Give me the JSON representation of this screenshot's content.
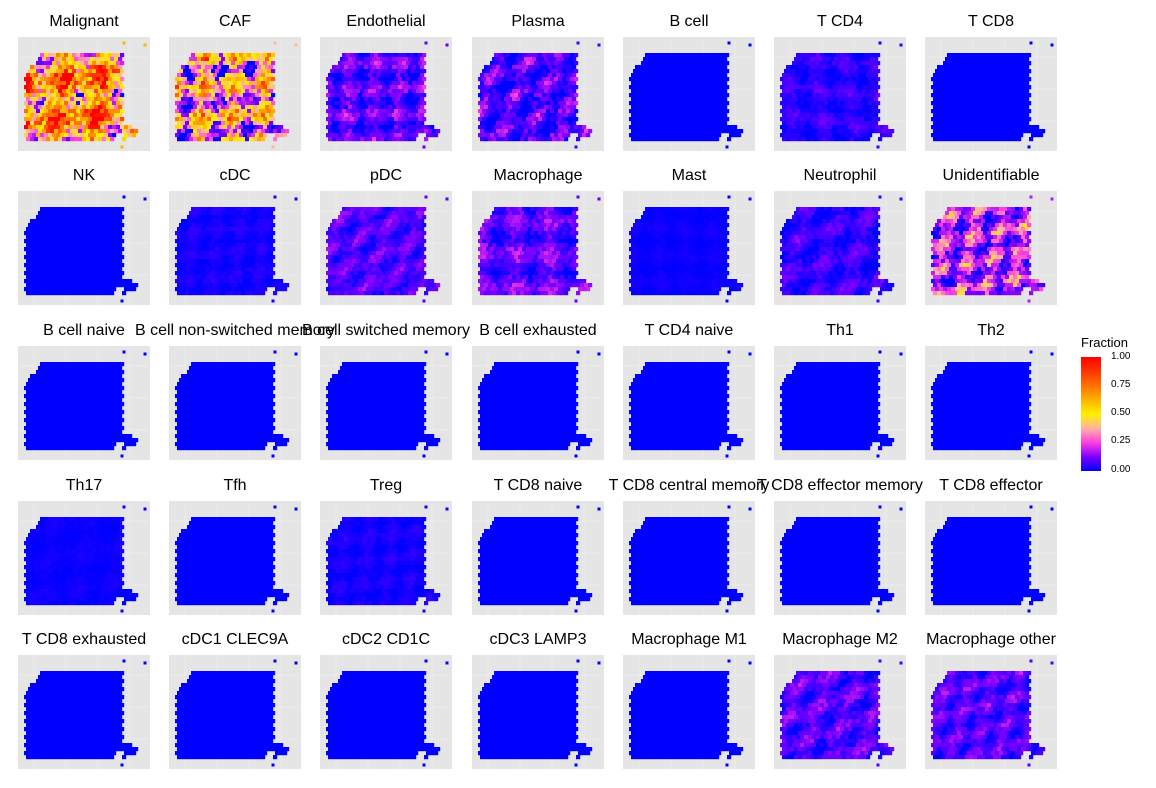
{
  "chart_data": {
    "type": "heatmap",
    "layout": "facet grid of spatial maps, 7 columns x 5 rows",
    "title": "",
    "xlabel": "",
    "ylabel": "",
    "grid": true,
    "background": "#e5e5e5",
    "legend": {
      "title": "Fraction",
      "placement": "right",
      "limits": [
        0,
        1
      ],
      "ticks": [
        1.0,
        0.75,
        0.5,
        0.25,
        0.0
      ],
      "tick_labels": [
        "1.00",
        "0.75",
        "0.50",
        "0.25",
        "0.00"
      ],
      "colors": [
        "#0000ff",
        "#7f00ff",
        "#ff3fe0",
        "#ffb4a0",
        "#fff000",
        "#ffb000",
        "#ff7000",
        "#ff3500",
        "#ff0000"
      ]
    },
    "panels": [
      {
        "name": "Malignant",
        "level": 0.62,
        "variability": 0.32
      },
      {
        "name": "CAF",
        "level": 0.38,
        "variability": 0.3
      },
      {
        "name": "Endothelial",
        "level": 0.09,
        "variability": 0.08
      },
      {
        "name": "Plasma",
        "level": 0.07,
        "variability": 0.09
      },
      {
        "name": "B cell",
        "level": 0.0,
        "variability": 0.0
      },
      {
        "name": "T CD4",
        "level": 0.04,
        "variability": 0.04
      },
      {
        "name": "T CD8",
        "level": 0.0,
        "variability": 0.0
      },
      {
        "name": "NK",
        "level": 0.0,
        "variability": 0.0
      },
      {
        "name": "cDC",
        "level": 0.02,
        "variability": 0.02
      },
      {
        "name": "pDC",
        "level": 0.08,
        "variability": 0.05
      },
      {
        "name": "Macrophage",
        "level": 0.09,
        "variability": 0.07
      },
      {
        "name": "Mast",
        "level": 0.01,
        "variability": 0.01
      },
      {
        "name": "Neutrophil",
        "level": 0.05,
        "variability": 0.05
      },
      {
        "name": "Unidentifiable",
        "level": 0.18,
        "variability": 0.16
      },
      {
        "name": "B cell naive",
        "level": 0.0,
        "variability": 0.0
      },
      {
        "name": "B cell non-switched memory",
        "level": 0.0,
        "variability": 0.0
      },
      {
        "name": "B cell switched memory",
        "level": 0.0,
        "variability": 0.0
      },
      {
        "name": "B cell exhausted",
        "level": 0.0,
        "variability": 0.0
      },
      {
        "name": "T CD4 naive",
        "level": 0.0,
        "variability": 0.0
      },
      {
        "name": "Th1",
        "level": 0.0,
        "variability": 0.0
      },
      {
        "name": "Th2",
        "level": 0.0,
        "variability": 0.0
      },
      {
        "name": "Th17",
        "level": 0.01,
        "variability": 0.01
      },
      {
        "name": "Tfh",
        "level": 0.0,
        "variability": 0.0
      },
      {
        "name": "Treg",
        "level": 0.02,
        "variability": 0.02
      },
      {
        "name": "T CD8 naive",
        "level": 0.0,
        "variability": 0.0
      },
      {
        "name": "T CD8 central memory",
        "level": 0.0,
        "variability": 0.0
      },
      {
        "name": "T CD8 effector memory",
        "level": 0.0,
        "variability": 0.0
      },
      {
        "name": "T CD8 effector",
        "level": 0.0,
        "variability": 0.0
      },
      {
        "name": "T CD8 exhausted",
        "level": 0.0,
        "variability": 0.0
      },
      {
        "name": "cDC1 CLEC9A",
        "level": 0.0,
        "variability": 0.0
      },
      {
        "name": "cDC2 CD1C",
        "level": 0.0,
        "variability": 0.0
      },
      {
        "name": "cDC3 LAMP3",
        "level": 0.0,
        "variability": 0.0
      },
      {
        "name": "Macrophage M1",
        "level": 0.0,
        "variability": 0.0
      },
      {
        "name": "Macrophage M2",
        "level": 0.08,
        "variability": 0.06
      },
      {
        "name": "Macrophage other",
        "level": 0.08,
        "variability": 0.06
      }
    ]
  }
}
